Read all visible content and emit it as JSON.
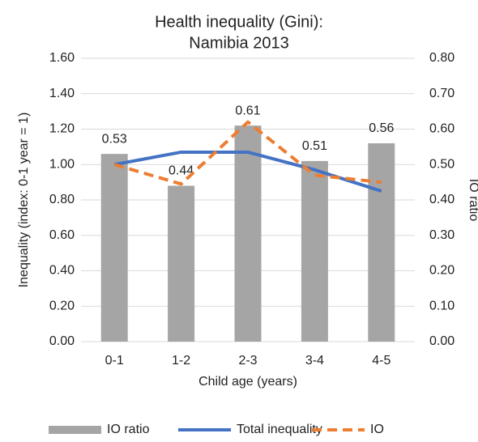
{
  "chart_data": {
    "type": "bar-line",
    "title": [
      "Health inequality (Gini):",
      "Namibia 2013"
    ],
    "x_label": "Child age (years)",
    "y_label": "Inequality  (index: 0-1 year = 1)",
    "y2_label": "IO ratio",
    "categories": [
      "0-1",
      "1-2",
      "2-3",
      "3-4",
      "4-5"
    ],
    "series": [
      {
        "name": "IO ratio",
        "type": "bar",
        "axis": "y2",
        "color": "#a5a5a5",
        "values": [
          0.53,
          0.44,
          0.61,
          0.51,
          0.56
        ],
        "data_labels": true
      },
      {
        "name": "Total inequality",
        "type": "line",
        "axis": "y",
        "color": "#4472c4",
        "dashed": false,
        "values": [
          1.0,
          1.07,
          1.07,
          0.97,
          0.85
        ]
      },
      {
        "name": "IO",
        "type": "line",
        "axis": "y",
        "color": "#ed7d31",
        "dashed": true,
        "values": [
          1.0,
          0.89,
          1.24,
          0.94,
          0.9
        ]
      }
    ],
    "ylim": [
      0,
      1.6
    ],
    "yticks": [
      {
        "value": 0,
        "label": "0.00"
      },
      {
        "value": 0.2,
        "label": "0.20"
      },
      {
        "value": 0.4,
        "label": "0.40"
      },
      {
        "value": 0.6,
        "label": "0.60"
      },
      {
        "value": 0.8,
        "label": "0.80"
      },
      {
        "value": 1,
        "label": "1.00"
      },
      {
        "value": 1.2,
        "label": "1.20"
      },
      {
        "value": 1.4,
        "label": "1.40"
      },
      {
        "value": 1.6,
        "label": "1.60"
      }
    ],
    "y2lim": [
      0,
      0.8
    ],
    "y2ticks": [
      {
        "value": 0,
        "label": "0.00"
      },
      {
        "value": 0.1,
        "label": "0.10"
      },
      {
        "value": 0.2,
        "label": "0.20"
      },
      {
        "value": 0.3,
        "label": "0.30"
      },
      {
        "value": 0.4,
        "label": "0.40"
      },
      {
        "value": 0.5,
        "label": "0.50"
      },
      {
        "value": 0.6,
        "label": "0.60"
      },
      {
        "value": 0.7,
        "label": "0.70"
      },
      {
        "value": 0.8,
        "label": "0.80"
      }
    ],
    "grid": true,
    "legend": "bottom"
  }
}
